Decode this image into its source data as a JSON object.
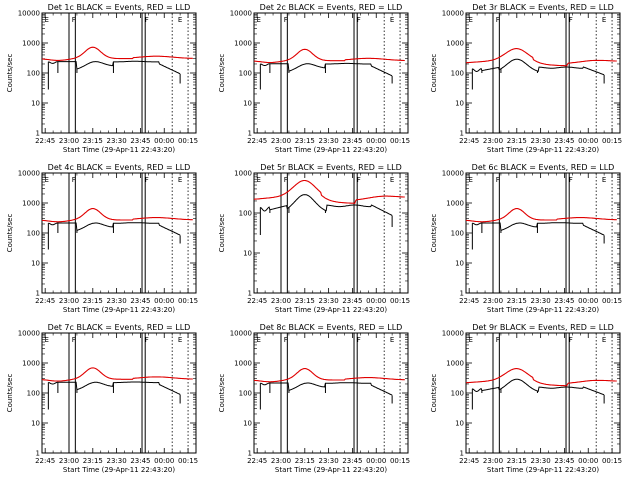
{
  "chart_data": [
    {
      "id": "1c",
      "type": "line",
      "title": "Det 1c BLACK = Events, RED = LLD",
      "xlabel": "Start Time (29-Apr-11 22:43:20)",
      "ylabel": "Counts/sec",
      "yscale": "log",
      "ylim": [
        1,
        10000
      ],
      "xlim_minutes": [
        -2,
        95
      ],
      "x_tick_labels": [
        "22:45",
        "23:00",
        "23:15",
        "23:30",
        "23:45",
        "00:00",
        "00:15"
      ],
      "y_tick_labels": [
        "1",
        "10",
        "100",
        "1000",
        "10000"
      ],
      "markers": [
        {
          "label": "E",
          "x": "22:46"
        },
        {
          "label": "F",
          "x": "23:03"
        },
        {
          "label": "F",
          "x": "23:49"
        },
        {
          "label": "E",
          "x": "00:10"
        }
      ],
      "series": [
        {
          "name": "Events",
          "color": "#000000",
          "profile": "std",
          "level": 1
        },
        {
          "name": "LLD",
          "color": "#e00000",
          "profile": "std",
          "level": 1
        }
      ]
    },
    {
      "id": "2c",
      "type": "line",
      "title": "Det 2c BLACK = Events, RED = LLD",
      "xlabel": "Start Time (29-Apr-11 22:43:20)",
      "ylabel": "Counts/sec",
      "yscale": "log",
      "ylim": [
        1,
        10000
      ],
      "xlim_minutes": [
        -2,
        95
      ],
      "x_tick_labels": [
        "22:45",
        "23:00",
        "23:15",
        "23:30",
        "23:45",
        "00:00",
        "00:15"
      ],
      "y_tick_labels": [
        "1",
        "10",
        "100",
        "1000",
        "10000"
      ],
      "markers": [
        {
          "label": "E",
          "x": "22:46"
        },
        {
          "label": "F",
          "x": "23:03"
        },
        {
          "label": "F",
          "x": "23:49"
        },
        {
          "label": "E",
          "x": "00:10"
        }
      ],
      "series": [
        {
          "name": "Events",
          "color": "#000000",
          "profile": "std",
          "level": 0.85
        },
        {
          "name": "LLD",
          "color": "#e00000",
          "profile": "std",
          "level": 0.85
        }
      ]
    },
    {
      "id": "3r",
      "type": "line",
      "title": "Det 3r BLACK = Events, RED = LLD",
      "xlabel": "Start Time (29-Apr-11 22:43:20)",
      "ylabel": "Counts/sec",
      "yscale": "log",
      "ylim": [
        1,
        10000
      ],
      "xlim_minutes": [
        -2,
        95
      ],
      "x_tick_labels": [
        "22:45",
        "23:00",
        "23:15",
        "23:30",
        "23:45",
        "00:00",
        "00:15"
      ],
      "y_tick_labels": [
        "1",
        "10",
        "100",
        "1000",
        "10000"
      ],
      "markers": [
        {
          "label": "E",
          "x": "22:46"
        },
        {
          "label": "F",
          "x": "23:03"
        },
        {
          "label": "F",
          "x": "23:49"
        },
        {
          "label": "E",
          "x": "00:10"
        }
      ],
      "series": [
        {
          "name": "Events",
          "color": "#000000",
          "profile": "rear",
          "level": 1
        },
        {
          "name": "LLD",
          "color": "#e00000",
          "profile": "rear",
          "level": 1
        }
      ]
    },
    {
      "id": "4c",
      "type": "line",
      "title": "Det 4c BLACK = Events, RED = LLD",
      "xlabel": "Start Time (29-Apr-11 22:43:20)",
      "ylabel": "Counts/sec",
      "yscale": "log",
      "ylim": [
        1,
        10000
      ],
      "xlim_minutes": [
        -2,
        95
      ],
      "x_tick_labels": [
        "22:45",
        "23:00",
        "23:15",
        "23:30",
        "23:45",
        "00:00",
        "00:15"
      ],
      "y_tick_labels": [
        "1",
        "10",
        "100",
        "1000",
        "10000"
      ],
      "markers": [
        {
          "label": "E",
          "x": "22:46"
        },
        {
          "label": "F",
          "x": "23:03"
        },
        {
          "label": "F",
          "x": "23:49"
        },
        {
          "label": "E",
          "x": "00:10"
        }
      ],
      "series": [
        {
          "name": "Events",
          "color": "#000000",
          "profile": "std",
          "level": 0.9
        },
        {
          "name": "LLD",
          "color": "#e00000",
          "profile": "std",
          "level": 0.9
        }
      ]
    },
    {
      "id": "5r",
      "type": "line",
      "title": "Det 5r BLACK = Events, RED = LLD",
      "xlabel": "Start Time (29-Apr-11 22:43:20)",
      "ylabel": "Counts/sec",
      "yscale": "log",
      "ylim": [
        1,
        1000
      ],
      "xlim_minutes": [
        -2,
        95
      ],
      "x_tick_labels": [
        "22:45",
        "23:00",
        "23:15",
        "23:30",
        "23:45",
        "00:00",
        "00:15"
      ],
      "y_tick_labels": [
        "1",
        "10",
        "100",
        "1000"
      ],
      "markers": [
        {
          "label": "E",
          "x": "22:46"
        },
        {
          "label": "F",
          "x": "23:03"
        },
        {
          "label": "F",
          "x": "23:49"
        },
        {
          "label": "E",
          "x": "00:10"
        }
      ],
      "series": [
        {
          "name": "Events",
          "color": "#000000",
          "profile": "rear",
          "level": 1
        },
        {
          "name": "LLD",
          "color": "#e00000",
          "profile": "rear",
          "level": 1
        }
      ]
    },
    {
      "id": "6c",
      "type": "line",
      "title": "Det 6c BLACK = Events, RED = LLD",
      "xlabel": "Start Time (29-Apr-11 22:43:20)",
      "ylabel": "Counts/sec",
      "yscale": "log",
      "ylim": [
        1,
        10000
      ],
      "xlim_minutes": [
        -2,
        95
      ],
      "x_tick_labels": [
        "22:45",
        "23:00",
        "23:15",
        "23:30",
        "23:45",
        "00:00",
        "00:15"
      ],
      "y_tick_labels": [
        "1",
        "10",
        "100",
        "1000",
        "10000"
      ],
      "markers": [
        {
          "label": "E",
          "x": "22:46"
        },
        {
          "label": "F",
          "x": "23:03"
        },
        {
          "label": "F",
          "x": "23:49"
        },
        {
          "label": "E",
          "x": "00:10"
        }
      ],
      "series": [
        {
          "name": "Events",
          "color": "#000000",
          "profile": "std",
          "level": 0.9
        },
        {
          "name": "LLD",
          "color": "#e00000",
          "profile": "std",
          "level": 0.9
        }
      ]
    },
    {
      "id": "7c",
      "type": "line",
      "title": "Det 7c BLACK = Events, RED = LLD",
      "xlabel": "Start Time (29-Apr-11 22:43:20)",
      "ylabel": "Counts/sec",
      "yscale": "log",
      "ylim": [
        1,
        10000
      ],
      "xlim_minutes": [
        -2,
        95
      ],
      "x_tick_labels": [
        "22:45",
        "23:00",
        "23:15",
        "23:30",
        "23:45",
        "00:00",
        "00:15"
      ],
      "y_tick_labels": [
        "1",
        "10",
        "100",
        "1000",
        "10000"
      ],
      "markers": [
        {
          "label": "E",
          "x": "22:46"
        },
        {
          "label": "F",
          "x": "23:03"
        },
        {
          "label": "F",
          "x": "23:49"
        },
        {
          "label": "E",
          "x": "00:10"
        }
      ],
      "series": [
        {
          "name": "Events",
          "color": "#000000",
          "profile": "std",
          "level": 0.95
        },
        {
          "name": "LLD",
          "color": "#e00000",
          "profile": "std",
          "level": 0.95
        }
      ]
    },
    {
      "id": "8c",
      "type": "line",
      "title": "Det 8c BLACK = Events, RED = LLD",
      "xlabel": "Start Time (29-Apr-11 22:43:20)",
      "ylabel": "Counts/sec",
      "yscale": "log",
      "ylim": [
        1,
        10000
      ],
      "xlim_minutes": [
        -2,
        95
      ],
      "x_tick_labels": [
        "22:45",
        "23:00",
        "23:15",
        "23:30",
        "23:45",
        "00:00",
        "00:15"
      ],
      "y_tick_labels": [
        "1",
        "10",
        "100",
        "1000",
        "10000"
      ],
      "markers": [
        {
          "label": "E",
          "x": "22:46"
        },
        {
          "label": "F",
          "x": "23:03"
        },
        {
          "label": "F",
          "x": "23:49"
        },
        {
          "label": "E",
          "x": "00:10"
        }
      ],
      "series": [
        {
          "name": "Events",
          "color": "#000000",
          "profile": "std",
          "level": 0.9
        },
        {
          "name": "LLD",
          "color": "#e00000",
          "profile": "std",
          "level": 0.9
        }
      ]
    },
    {
      "id": "9r",
      "type": "line",
      "title": "Det 9r BLACK = Events, RED = LLD",
      "xlabel": "Start Time (29-Apr-11 22:43:20)",
      "ylabel": "Counts/sec",
      "yscale": "log",
      "ylim": [
        1,
        10000
      ],
      "xlim_minutes": [
        -2,
        95
      ],
      "x_tick_labels": [
        "22:45",
        "23:00",
        "23:15",
        "23:30",
        "23:45",
        "00:00",
        "00:15"
      ],
      "y_tick_labels": [
        "1",
        "10",
        "100",
        "1000",
        "10000"
      ],
      "markers": [
        {
          "label": "E",
          "x": "22:46"
        },
        {
          "label": "F",
          "x": "23:03"
        },
        {
          "label": "F",
          "x": "23:49"
        },
        {
          "label": "E",
          "x": "00:10"
        }
      ],
      "series": [
        {
          "name": "Events",
          "color": "#000000",
          "profile": "rear",
          "level": 1
        },
        {
          "name": "LLD",
          "color": "#e00000",
          "profile": "rear",
          "level": 1
        }
      ]
    }
  ]
}
